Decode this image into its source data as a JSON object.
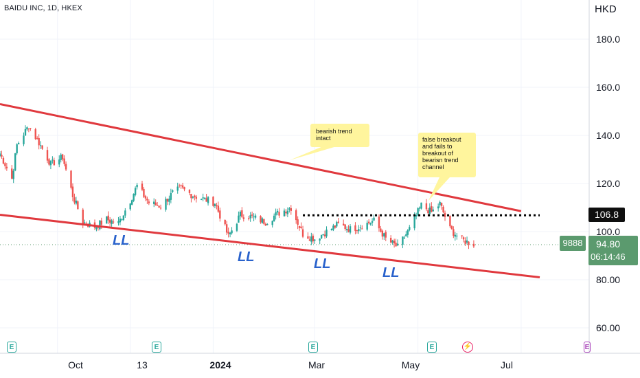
{
  "header": {
    "ticker": "BAIDU INC, 1D, HKEX",
    "currency": "HKD"
  },
  "axes": {
    "y_ticks": [
      "180.0",
      "160.0",
      "140.0",
      "120.0",
      "100.0",
      "80.00",
      "60.00"
    ],
    "x_ticks": [
      "Oct",
      "13",
      "2024",
      "Mar",
      "May",
      "Jul"
    ]
  },
  "price_labels": {
    "level": "106.8",
    "symbol": "9888",
    "last": "94.80",
    "countdown": "06:14:46"
  },
  "annotations": {
    "note_trend": "bearish trend intact",
    "note_breakout": "false breakout and fails to breakout of bearisn trend channel",
    "ll": [
      "LL",
      "LL",
      "LL",
      "LL"
    ]
  },
  "colors": {
    "up": "#26a69a",
    "down": "#ef5350",
    "trendline": "#e0393e",
    "note_bg": "#fff59d",
    "ll_text": "#2962cc",
    "price_label": "#5b9a6e"
  },
  "icons": {
    "earnings": "E",
    "dividend": "⚡"
  },
  "chart_data": {
    "type": "candlestick",
    "title": "BAIDU INC, 1D, HKEX",
    "ylim": [
      50,
      190
    ],
    "x_range": [
      "2023-08-28",
      "2024-07-12"
    ],
    "series": [
      {
        "name": "price",
        "points": [
          [
            "2023-08-28",
            132.5
          ],
          [
            "2023-09-04",
            122.0
          ],
          [
            "2023-09-07",
            136.0
          ],
          [
            "2023-09-14",
            144.0
          ],
          [
            "2023-09-20",
            137.0
          ],
          [
            "2023-09-27",
            128.0
          ],
          [
            "2023-10-04",
            131.0
          ],
          [
            "2023-10-10",
            115.0
          ],
          [
            "2023-10-16",
            104.0
          ],
          [
            "2023-10-23",
            102.0
          ],
          [
            "2023-10-30",
            105.0
          ],
          [
            "2023-11-06",
            103.5
          ],
          [
            "2023-11-13",
            113.0
          ],
          [
            "2023-11-17",
            119.0
          ],
          [
            "2023-11-24",
            112.0
          ],
          [
            "2023-12-01",
            110.5
          ],
          [
            "2023-12-08",
            116.0
          ],
          [
            "2023-12-13",
            118.0
          ],
          [
            "2023-12-20",
            115.0
          ],
          [
            "2024-01-02",
            112.0
          ],
          [
            "2024-01-10",
            98.0
          ],
          [
            "2024-01-17",
            107.0
          ],
          [
            "2024-01-24",
            106.0
          ],
          [
            "2024-02-01",
            104.0
          ],
          [
            "2024-02-08",
            107.5
          ],
          [
            "2024-02-16",
            110.0
          ],
          [
            "2024-02-23",
            99.0
          ],
          [
            "2024-03-01",
            97.0
          ],
          [
            "2024-03-08",
            100.0
          ],
          [
            "2024-03-15",
            103.0
          ],
          [
            "2024-03-22",
            101.0
          ],
          [
            "2024-03-29",
            102.5
          ],
          [
            "2024-04-05",
            104.5
          ],
          [
            "2024-04-12",
            97.0
          ],
          [
            "2024-04-19",
            93.5
          ],
          [
            "2024-04-26",
            101.0
          ],
          [
            "2024-05-03",
            111.0
          ],
          [
            "2024-05-09",
            108.0
          ],
          [
            "2024-05-14",
            111.5
          ],
          [
            "2024-05-20",
            101.0
          ],
          [
            "2024-05-27",
            96.5
          ],
          [
            "2024-06-03",
            94.8
          ]
        ]
      }
    ],
    "trendlines": [
      {
        "name": "upper",
        "from": [
          "2023-08-28",
          153.0
        ],
        "to": [
          "2024-07-01",
          108.5
        ]
      },
      {
        "name": "lower",
        "from": [
          "2023-08-28",
          107.0
        ],
        "to": [
          "2024-07-12",
          81.0
        ]
      },
      {
        "name": "level",
        "from": [
          "2024-02-23",
          106.8
        ],
        "to": [
          "2024-07-12",
          106.8
        ]
      }
    ],
    "y_tick_values": [
      180,
      160,
      140,
      120,
      100,
      80,
      60
    ],
    "x_tick_dates": [
      "2023-10-01",
      "2023-11-13",
      "2024-01-01",
      "2024-03-01",
      "2024-05-01",
      "2024-07-01"
    ],
    "grid": true,
    "legend": "none"
  }
}
